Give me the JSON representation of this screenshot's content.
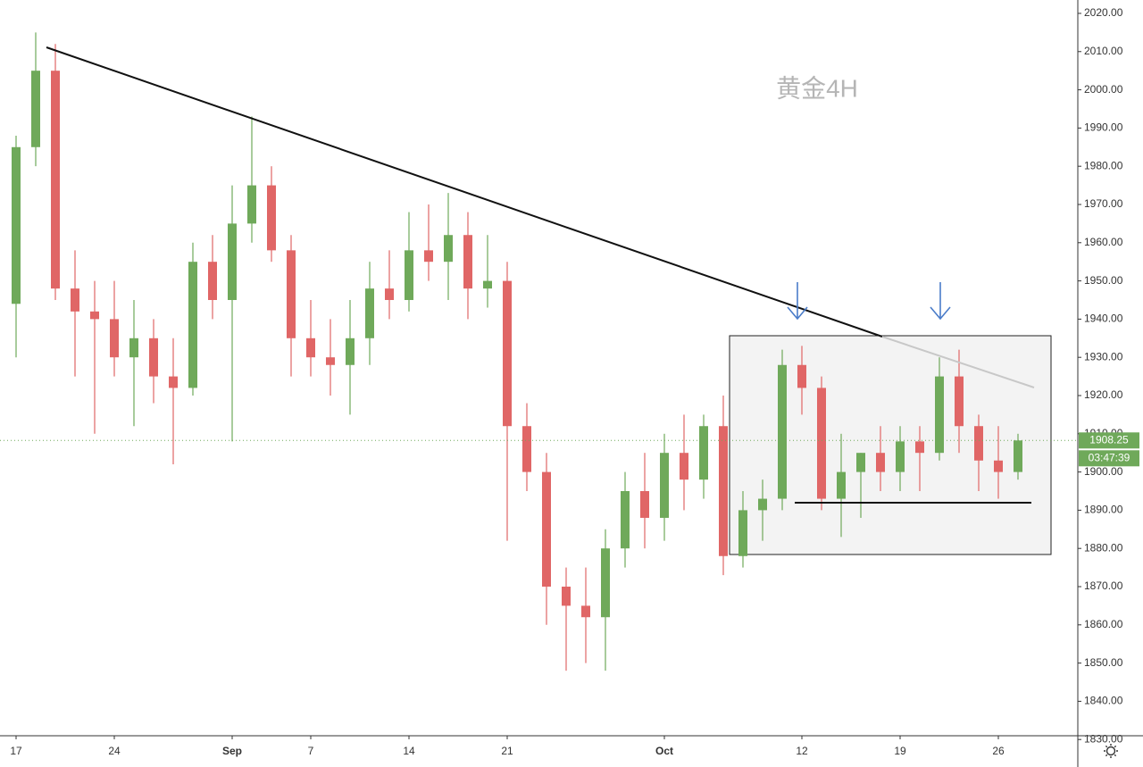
{
  "chart_data": {
    "type": "candlestick",
    "title": "黄金4H",
    "categories": [
      "17",
      null,
      null,
      null,
      null,
      "24",
      null,
      null,
      null,
      null,
      null,
      "Sep",
      null,
      null,
      null,
      "7",
      null,
      null,
      null,
      null,
      "14",
      null,
      null,
      null,
      null,
      "21",
      null,
      null,
      null,
      null,
      null,
      null,
      null,
      "Oct",
      null,
      null,
      null,
      null,
      null,
      null,
      "12",
      null,
      null,
      null,
      null,
      "19",
      null,
      null,
      null,
      null,
      "26",
      null
    ],
    "open": [
      1944,
      1985,
      2005,
      1948,
      1942,
      1940,
      1930,
      1935,
      1925,
      1922,
      1955,
      1945,
      1965,
      1975,
      1958,
      1935,
      1930,
      1928,
      1935,
      1948,
      1945,
      1958,
      1955,
      1962,
      1948,
      1950,
      1912,
      1900,
      1870,
      1865,
      1862,
      1880,
      1895,
      1888,
      1905,
      1898,
      1912,
      1878,
      1890,
      1893,
      1928,
      1922,
      1893,
      1900,
      1905,
      1900,
      1908,
      1905,
      1925,
      1912,
      1903,
      1900
    ],
    "high": [
      1988,
      2015,
      2012,
      1958,
      1950,
      1950,
      1945,
      1940,
      1935,
      1960,
      1962,
      1975,
      1993,
      1980,
      1962,
      1945,
      1940,
      1945,
      1955,
      1958,
      1968,
      1970,
      1973,
      1968,
      1962,
      1955,
      1918,
      1905,
      1875,
      1875,
      1885,
      1900,
      1905,
      1910,
      1915,
      1915,
      1920,
      1895,
      1898,
      1932,
      1933,
      1925,
      1910,
      1905,
      1912,
      1912,
      1912,
      1930,
      1932,
      1915,
      1912,
      1910
    ],
    "low": [
      1930,
      1980,
      1945,
      1925,
      1910,
      1925,
      1912,
      1918,
      1902,
      1920,
      1940,
      1908,
      1960,
      1955,
      1925,
      1925,
      1920,
      1915,
      1928,
      1940,
      1942,
      1950,
      1945,
      1940,
      1943,
      1882,
      1895,
      1860,
      1848,
      1850,
      1848,
      1875,
      1880,
      1882,
      1890,
      1893,
      1873,
      1875,
      1882,
      1890,
      1915,
      1890,
      1883,
      1888,
      1895,
      1895,
      1895,
      1903,
      1905,
      1895,
      1893,
      1898
    ],
    "close": [
      1985,
      2005,
      1948,
      1942,
      1940,
      1930,
      1935,
      1925,
      1922,
      1955,
      1945,
      1965,
      1975,
      1958,
      1935,
      1930,
      1928,
      1935,
      1948,
      1945,
      1958,
      1955,
      1962,
      1948,
      1950,
      1912,
      1900,
      1870,
      1865,
      1862,
      1880,
      1895,
      1888,
      1905,
      1898,
      1912,
      1878,
      1890,
      1893,
      1928,
      1922,
      1893,
      1900,
      1905,
      1900,
      1908,
      1905,
      1925,
      1912,
      1903,
      1900,
      1908.25
    ],
    "up_color": "#6fa95a",
    "down_color": "#e06666",
    "ylim": [
      1831.45,
      2023.5
    ],
    "yticks": [
      {
        "value": 1830,
        "label": "1830.00"
      },
      {
        "value": 1840,
        "label": "1840.00"
      },
      {
        "value": 1850,
        "label": "1850.00"
      },
      {
        "value": 1860,
        "label": "1860.00"
      },
      {
        "value": 1870,
        "label": "1870.00"
      },
      {
        "value": 1880,
        "label": "1880.00"
      },
      {
        "value": 1890,
        "label": "1890.00"
      },
      {
        "value": 1900,
        "label": "1900.00"
      },
      {
        "value": 1910,
        "label": "1910.00"
      },
      {
        "value": 1920,
        "label": "1920.00"
      },
      {
        "value": 1930,
        "label": "1930.00"
      },
      {
        "value": 1940,
        "label": "1940.00"
      },
      {
        "value": 1950,
        "label": "1950.00"
      },
      {
        "value": 1960,
        "label": "1960.00"
      },
      {
        "value": 1970,
        "label": "1970.00"
      },
      {
        "value": 1980,
        "label": "1980.00"
      },
      {
        "value": 1990,
        "label": "1990.00"
      },
      {
        "value": 2000,
        "label": "2000.00"
      },
      {
        "value": 2010,
        "label": "2010.00"
      },
      {
        "value": 2020,
        "label": "2020.00"
      }
    ],
    "last_price": 1908.25,
    "countdown": "03:47:39"
  }
}
